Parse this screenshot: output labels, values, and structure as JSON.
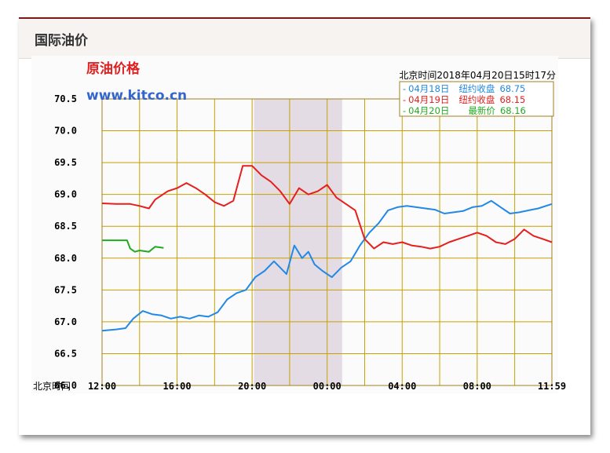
{
  "panel": {
    "title": "国际油价"
  },
  "chart_data": {
    "type": "line",
    "title": "原油价格",
    "watermark": "www.kitco.cn",
    "timestamp": "北京时间2018年04月20日15时17分",
    "xlabel": "北京时间",
    "x_ticks": [
      "12:00",
      "16:00",
      "20:00",
      "00:00",
      "04:00",
      "08:00",
      "11:59"
    ],
    "xlim": [
      "12:00",
      "11:59 next day"
    ],
    "ylim": [
      66.0,
      70.5
    ],
    "y_ticks": [
      "70.5",
      "70.0",
      "69.5",
      "69.0",
      "68.5",
      "68.0",
      "67.5",
      "67.0",
      "66.5",
      "66.0"
    ],
    "grid": true,
    "shaded_span": [
      "20:06",
      "00:48"
    ],
    "legend_position": "top-right",
    "colors": {
      "grid": "#c8a000",
      "title": "#e02020",
      "watermark": "#3366cc",
      "shade": "#e4dce4",
      "plot_border": "#a08020"
    },
    "series": [
      {
        "name": "04月18日",
        "label": "纽约收盘",
        "value": "68.75",
        "color": "#2288e6",
        "points": [
          [
            "12:00",
            66.86
          ],
          [
            "12:45",
            66.88
          ],
          [
            "13:15",
            66.9
          ],
          [
            "13:40",
            67.05
          ],
          [
            "14:10",
            67.17
          ],
          [
            "14:40",
            67.12
          ],
          [
            "15:10",
            67.1
          ],
          [
            "15:40",
            67.05
          ],
          [
            "16:10",
            67.08
          ],
          [
            "16:40",
            67.05
          ],
          [
            "17:10",
            67.1
          ],
          [
            "17:40",
            67.08
          ],
          [
            "18:10",
            67.15
          ],
          [
            "18:40",
            67.35
          ],
          [
            "19:10",
            67.45
          ],
          [
            "19:40",
            67.5
          ],
          [
            "20:10",
            67.7
          ],
          [
            "20:40",
            67.8
          ],
          [
            "21:10",
            67.95
          ],
          [
            "21:30",
            67.85
          ],
          [
            "21:50",
            67.75
          ],
          [
            "22:15",
            68.2
          ],
          [
            "22:40",
            68.0
          ],
          [
            "23:00",
            68.1
          ],
          [
            "23:20",
            67.9
          ],
          [
            "23:45",
            67.8
          ],
          [
            "00:15",
            67.7
          ],
          [
            "00:45",
            67.85
          ],
          [
            "01:15",
            67.95
          ],
          [
            "01:45",
            68.2
          ],
          [
            "02:15",
            68.4
          ],
          [
            "02:45",
            68.55
          ],
          [
            "03:15",
            68.75
          ],
          [
            "03:45",
            68.8
          ],
          [
            "04:15",
            68.82
          ],
          [
            "04:45",
            68.8
          ],
          [
            "05:15",
            68.78
          ],
          [
            "05:45",
            68.76
          ],
          [
            "06:15",
            68.7
          ],
          [
            "06:45",
            68.72
          ],
          [
            "07:15",
            68.74
          ],
          [
            "07:45",
            68.8
          ],
          [
            "08:15",
            68.82
          ],
          [
            "08:45",
            68.9
          ],
          [
            "09:15",
            68.8
          ],
          [
            "09:45",
            68.7
          ],
          [
            "10:15",
            68.72
          ],
          [
            "10:45",
            68.75
          ],
          [
            "11:15",
            68.78
          ],
          [
            "11:59",
            68.85
          ]
        ]
      },
      {
        "name": "04月19日",
        "label": "纽约收盘",
        "value": "68.15",
        "color": "#e61e1e",
        "points": [
          [
            "12:00",
            68.86
          ],
          [
            "12:45",
            68.85
          ],
          [
            "13:30",
            68.85
          ],
          [
            "14:00",
            68.82
          ],
          [
            "14:30",
            68.78
          ],
          [
            "14:50",
            68.92
          ],
          [
            "15:30",
            69.05
          ],
          [
            "16:00",
            69.1
          ],
          [
            "16:30",
            69.18
          ],
          [
            "17:00",
            69.1
          ],
          [
            "17:30",
            69.0
          ],
          [
            "18:00",
            68.88
          ],
          [
            "18:30",
            68.82
          ],
          [
            "19:00",
            68.9
          ],
          [
            "19:30",
            69.45
          ],
          [
            "20:00",
            69.45
          ],
          [
            "20:30",
            69.3
          ],
          [
            "21:00",
            69.2
          ],
          [
            "21:30",
            69.05
          ],
          [
            "22:00",
            68.85
          ],
          [
            "22:30",
            69.1
          ],
          [
            "23:00",
            69.0
          ],
          [
            "23:30",
            69.05
          ],
          [
            "00:00",
            69.15
          ],
          [
            "00:30",
            68.95
          ],
          [
            "01:00",
            68.85
          ],
          [
            "01:30",
            68.75
          ],
          [
            "02:00",
            68.3
          ],
          [
            "02:30",
            68.15
          ],
          [
            "03:00",
            68.25
          ],
          [
            "03:30",
            68.22
          ],
          [
            "04:00",
            68.25
          ],
          [
            "04:30",
            68.2
          ],
          [
            "05:00",
            68.18
          ],
          [
            "05:30",
            68.15
          ],
          [
            "06:00",
            68.18
          ],
          [
            "06:30",
            68.25
          ],
          [
            "07:00",
            68.3
          ],
          [
            "07:30",
            68.35
          ],
          [
            "08:00",
            68.4
          ],
          [
            "08:30",
            68.35
          ],
          [
            "09:00",
            68.25
          ],
          [
            "09:30",
            68.22
          ],
          [
            "10:00",
            68.3
          ],
          [
            "10:30",
            68.45
          ],
          [
            "11:00",
            68.35
          ],
          [
            "11:30",
            68.3
          ],
          [
            "11:59",
            68.25
          ]
        ]
      },
      {
        "name": "04月20日",
        "label": "最新价",
        "value": "68.16",
        "color": "#22aa22",
        "points": [
          [
            "12:00",
            68.28
          ],
          [
            "13:20",
            68.28
          ],
          [
            "13:30",
            68.15
          ],
          [
            "13:45",
            68.1
          ],
          [
            "14:00",
            68.12
          ],
          [
            "14:30",
            68.1
          ],
          [
            "14:50",
            68.18
          ],
          [
            "15:17",
            68.16
          ]
        ]
      }
    ]
  }
}
